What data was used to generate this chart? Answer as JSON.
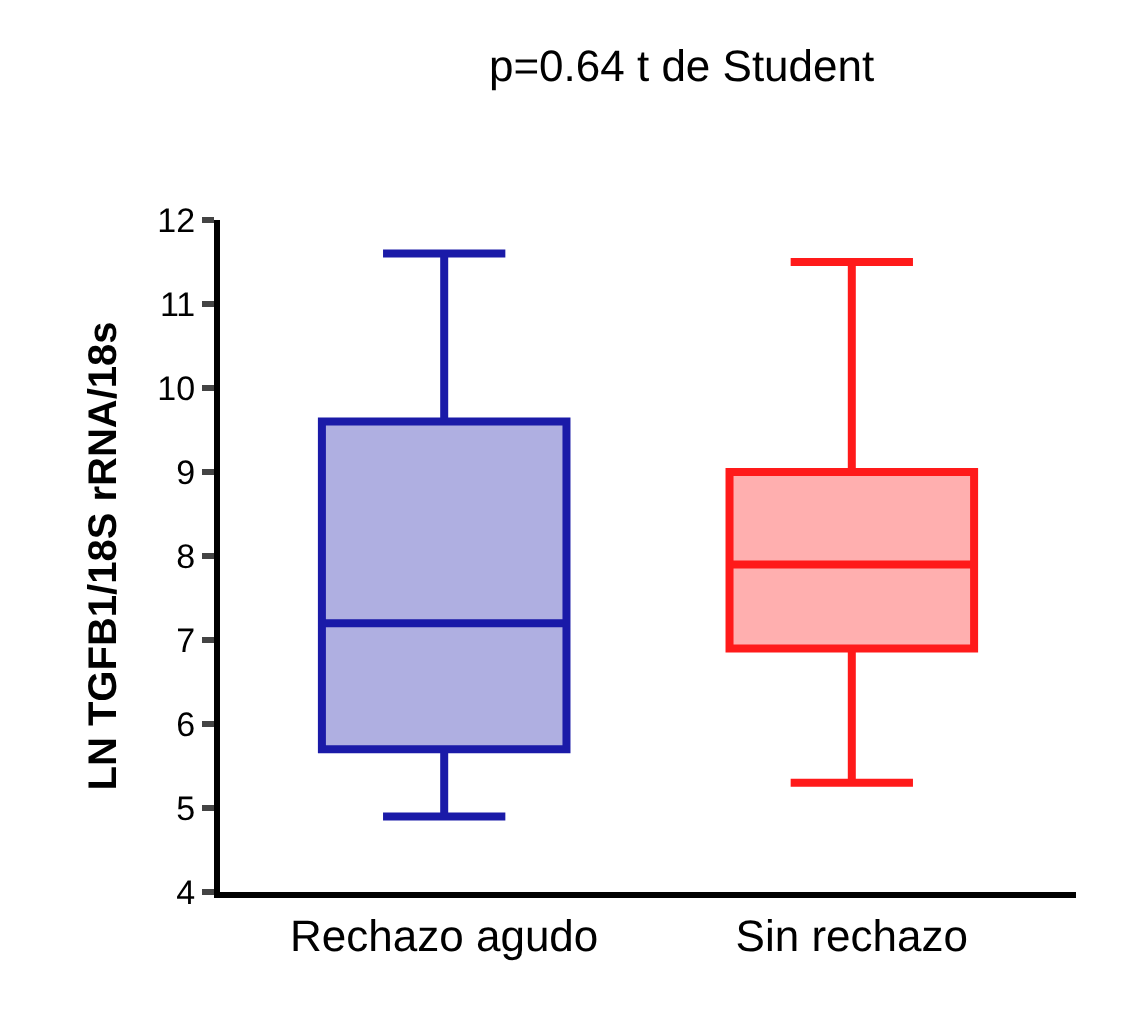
{
  "chart_data": {
    "type": "box",
    "title": "p=0.64 t de Student",
    "ylabel": "LN TGFB1/18S rRNA/18s",
    "categories": [
      "Rechazo agudo",
      "Sin rechazo"
    ],
    "colors": [
      "#1a1aa8",
      "#ff1a1a"
    ],
    "boxes": [
      {
        "low": 4.9,
        "q1": 5.7,
        "median": 7.2,
        "q3": 9.6,
        "high": 11.6
      },
      {
        "low": 5.3,
        "q1": 6.9,
        "median": 7.9,
        "q3": 9.0,
        "high": 11.5
      }
    ],
    "ylim": [
      4,
      12
    ],
    "yticks": [
      4,
      5,
      6,
      7,
      8,
      9,
      10,
      11,
      12
    ]
  }
}
